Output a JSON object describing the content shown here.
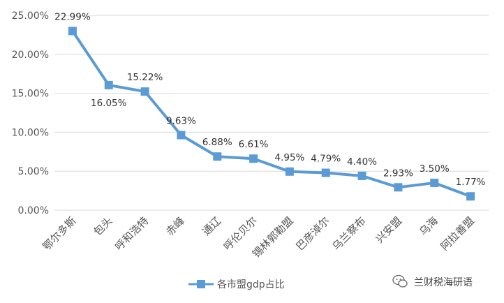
{
  "chart_data": {
    "type": "line",
    "categories": [
      "鄂尔多斯",
      "包头",
      "呼和浩特",
      "赤峰",
      "通辽",
      "呼伦贝尔",
      "锡林郭勒盟",
      "巴彦淖尔",
      "乌兰察布",
      "兴安盟",
      "乌海",
      "阿拉善盟"
    ],
    "series": [
      {
        "name": "各市盟gdp占比",
        "values": [
          22.99,
          16.05,
          15.22,
          9.63,
          6.88,
          6.61,
          4.95,
          4.79,
          4.4,
          2.93,
          3.5,
          1.77
        ]
      }
    ],
    "data_labels": [
      "22.99%",
      "16.05%",
      "15.22%",
      "9.63%",
      "6.88%",
      "6.61%",
      "4.95%",
      "4.79%",
      "4.40%",
      "2.93%",
      "3.50%",
      "1.77%"
    ],
    "y_ticks": [
      "0.00%",
      "5.00%",
      "10.00%",
      "15.00%",
      "20.00%",
      "25.00%"
    ],
    "ylim": [
      0,
      25
    ],
    "grid": true,
    "legend_position": "bottom",
    "title": "",
    "xlabel": "",
    "ylabel": "",
    "line_color": "#5b9bd5",
    "grid_color": "#d9d9d9"
  },
  "watermark": {
    "text": "兰财税海研语",
    "icon": "wechat-icon"
  }
}
